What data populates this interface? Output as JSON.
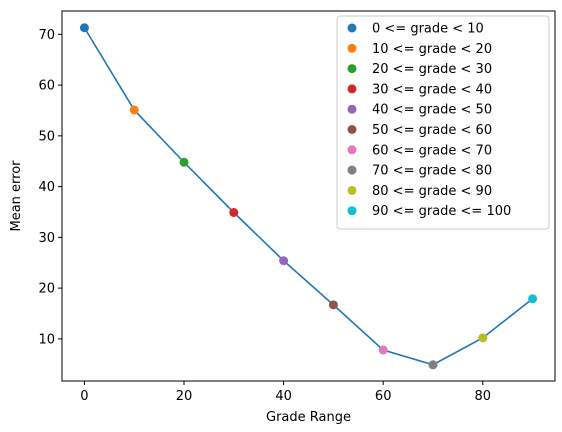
{
  "chart_data": {
    "type": "line",
    "title": "",
    "xlabel": "Grade Range",
    "ylabel": "Mean error",
    "xlim": [
      -4.5,
      94.5
    ],
    "ylim": [
      1.7,
      74.6
    ],
    "xticks": [
      0,
      20,
      40,
      60,
      80
    ],
    "yticks": [
      10,
      20,
      30,
      40,
      50,
      60,
      70
    ],
    "grid": false,
    "legend_placement": "top-right",
    "line_color": "#1f77b4",
    "series": [
      {
        "name": "0 <= grade < 10",
        "x": 0,
        "y": 71.3,
        "color": "#1f77b4"
      },
      {
        "name": "10 <= grade < 20",
        "x": 10,
        "y": 55.1,
        "color": "#ff7f0e"
      },
      {
        "name": "20 <= grade < 30",
        "x": 20,
        "y": 44.8,
        "color": "#2ca02c"
      },
      {
        "name": "30 <= grade < 40",
        "x": 30,
        "y": 34.9,
        "color": "#d62728"
      },
      {
        "name": "40 <= grade < 50",
        "x": 40,
        "y": 25.4,
        "color": "#9467bd"
      },
      {
        "name": "50 <= grade < 60",
        "x": 50,
        "y": 16.7,
        "color": "#8c564b"
      },
      {
        "name": "60 <= grade < 70",
        "x": 60,
        "y": 7.8,
        "color": "#e377c2"
      },
      {
        "name": "70 <= grade < 80",
        "x": 70,
        "y": 4.9,
        "color": "#7f7f7f"
      },
      {
        "name": "80 <= grade < 90",
        "x": 80,
        "y": 10.2,
        "color": "#bcbd22"
      },
      {
        "name": "90 <= grade <= 100",
        "x": 90,
        "y": 17.9,
        "color": "#17becf"
      }
    ]
  }
}
